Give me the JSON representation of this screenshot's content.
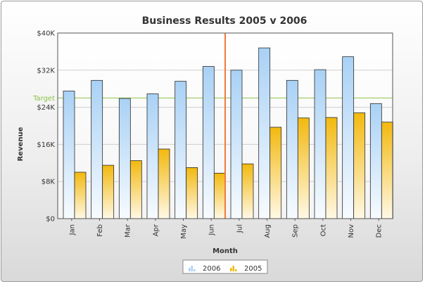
{
  "chart_data": {
    "type": "bar",
    "title": "Business Results 2005 v 2006",
    "xlabel": "Month",
    "ylabel": "Revenue",
    "categories": [
      "Jan",
      "Feb",
      "Mar",
      "Apr",
      "May",
      "Jun",
      "Jul",
      "Aug",
      "Sep",
      "Oct",
      "Nov",
      "Dec"
    ],
    "series": [
      {
        "name": "2006",
        "values": [
          27500,
          29800,
          25900,
          26900,
          29600,
          32800,
          32000,
          36800,
          29800,
          32100,
          34900,
          24800
        ],
        "color": "#a9d1f5"
      },
      {
        "name": "2005",
        "values": [
          10000,
          11500,
          12500,
          15000,
          11000,
          9800,
          11800,
          19700,
          21700,
          21800,
          22800,
          20800
        ],
        "color": "#f2b90f"
      }
    ],
    "ylim": [
      0,
      40000
    ],
    "yticks": [
      0,
      8000,
      16000,
      24000,
      32000,
      40000
    ],
    "ytick_labels": [
      "$0",
      "$8K",
      "$16K",
      "$24K",
      "$32K",
      "$40K"
    ],
    "target": {
      "label": "Target",
      "value": 26000,
      "color": "#8bc34a"
    },
    "divider": {
      "after_category": "Jun",
      "color": "#f07a3c"
    },
    "grid": true,
    "legend_position": "bottom-center"
  }
}
